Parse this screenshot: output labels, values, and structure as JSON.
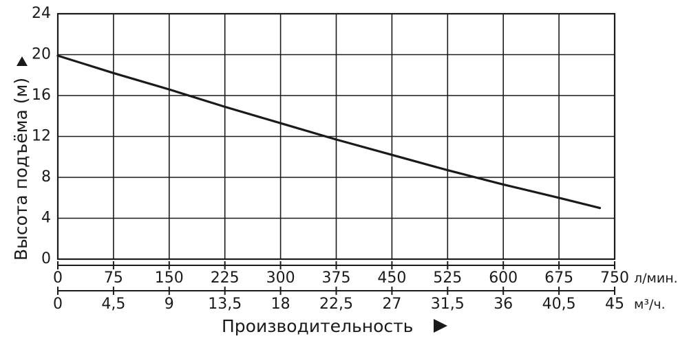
{
  "chart_data": {
    "type": "line",
    "title": "",
    "ylabel": "Высота подъёма (м)",
    "xlabel": "Производительность",
    "ylim": [
      0,
      24
    ],
    "yticks": [
      "0",
      "4",
      "8",
      "12",
      "16",
      "20",
      "24"
    ],
    "x_axes": [
      {
        "unit": "л/мин.",
        "ticks": [
          "0",
          "75",
          "150",
          "225",
          "300",
          "375",
          "450",
          "525",
          "600",
          "675",
          "750"
        ],
        "range": [
          0,
          750
        ]
      },
      {
        "unit": "м³/ч.",
        "ticks": [
          "0",
          "4,5",
          "9",
          "13,5",
          "18",
          "22,5",
          "27",
          "31,5",
          "36",
          "40,5",
          "45"
        ],
        "range": [
          0,
          45
        ]
      }
    ],
    "series": [
      {
        "x": [
          0,
          75,
          150,
          225,
          300,
          375,
          450,
          525,
          600,
          675,
          730
        ],
        "y": [
          19.9,
          18.2,
          16.6,
          14.9,
          13.3,
          11.7,
          10.2,
          8.7,
          7.3,
          6.0,
          5.0
        ]
      }
    ],
    "grid": true,
    "colors": {
      "line": "#1a1a1a",
      "grid": "#1a1a1a"
    }
  }
}
